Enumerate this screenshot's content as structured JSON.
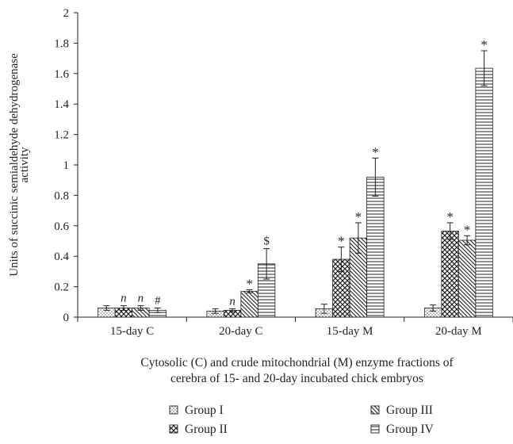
{
  "chart_data": {
    "type": "bar",
    "categories": [
      "15-day C",
      "20-day C",
      "15-day M",
      "20-day M"
    ],
    "series": [
      {
        "name": "Group I",
        "pattern": "dots",
        "values": [
          0.06,
          0.04,
          0.055,
          0.06
        ],
        "errors": [
          0.015,
          0.015,
          0.03,
          0.02
        ],
        "markers": [
          "",
          "",
          "",
          ""
        ]
      },
      {
        "name": "Group II",
        "pattern": "crosshatch",
        "values": [
          0.06,
          0.045,
          0.38,
          0.565
        ],
        "errors": [
          0.015,
          0.01,
          0.08,
          0.055
        ],
        "markers": [
          "n",
          "n",
          "*",
          "*"
        ]
      },
      {
        "name": "Group III",
        "pattern": "diagonal",
        "values": [
          0.06,
          0.17,
          0.52,
          0.505
        ],
        "errors": [
          0.015,
          0.01,
          0.1,
          0.03
        ],
        "markers": [
          "n",
          "*",
          "*",
          "*"
        ]
      },
      {
        "name": "Group IV",
        "pattern": "horizontal",
        "values": [
          0.045,
          0.35,
          0.92,
          1.635
        ],
        "errors": [
          0.015,
          0.1,
          0.125,
          0.115
        ],
        "markers": [
          "#",
          "$",
          "*",
          "*"
        ]
      }
    ],
    "ylabel": [
      "Units of succinic semialdehyde dehydrogenase",
      "activity"
    ],
    "xlabel": [
      "Cytosolic (C) and crude mitochondrial (M) enzyme fractions of",
      "cerebra of 15- and 20-day incubated chick embryos"
    ],
    "ylim": [
      0,
      2
    ],
    "yticks": [
      0,
      0.2,
      0.4,
      0.6,
      0.8,
      1,
      1.2,
      1.4,
      1.6,
      1.8,
      2
    ],
    "grid": false,
    "legend_position": "bottom"
  },
  "colors": {
    "ink": "#231f20",
    "fill": "#ffffff"
  }
}
